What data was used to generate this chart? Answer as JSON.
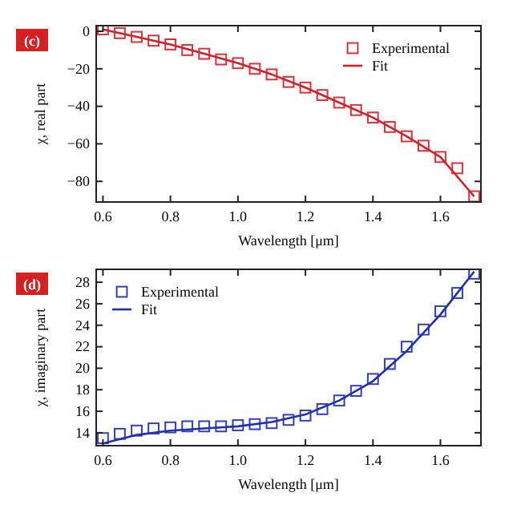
{
  "chart_data": [
    {
      "type": "scatter",
      "xlabel": "Wavelength [μm]",
      "ylabel": "χ, real part",
      "annotations": [
        "(c)"
      ],
      "xlim": [
        0.58,
        1.72
      ],
      "xticks": [
        0.6,
        0.8,
        {
          "value": 1,
          "label": "1.0"
        },
        1.2,
        1.4,
        1.6
      ],
      "ylim": [
        -91,
        3
      ],
      "yticks": [
        0,
        -20,
        -40,
        -60,
        -80
      ],
      "legend": "top right",
      "grid": false,
      "series": [
        {
          "name": "Experimental",
          "marker": "square",
          "color": "#e0303a",
          "x": [
            0.6,
            0.65,
            0.7,
            0.75,
            0.8,
            0.85,
            0.9,
            0.95,
            1.0,
            1.05,
            1.1,
            1.15,
            1.2,
            1.25,
            1.3,
            1.35,
            1.4,
            1.45,
            1.5,
            1.55,
            1.6,
            1.65,
            1.7
          ],
          "values": [
            1,
            -1,
            -3,
            -5,
            -7,
            -10,
            -12,
            -15,
            -17,
            -20,
            -23,
            -27,
            -30,
            -34,
            -38,
            -42,
            -46,
            -51,
            -56,
            -61,
            -67,
            -73,
            -88
          ]
        },
        {
          "name": "Fit",
          "type": "line",
          "color": "#d4202a",
          "x": [
            0.6,
            0.7,
            0.8,
            0.9,
            1.0,
            1.1,
            1.2,
            1.3,
            1.4,
            1.5,
            1.6,
            1.7
          ],
          "values": [
            1,
            -3,
            -7,
            -12,
            -17,
            -23,
            -30,
            -38,
            -46,
            -56,
            -67,
            -88
          ]
        }
      ]
    },
    {
      "type": "scatter",
      "xlabel": "Wavelength [μm]",
      "ylabel": "χ, imaginary part",
      "annotations": [
        "(d)"
      ],
      "xlim": [
        0.58,
        1.72
      ],
      "xticks": [
        0.6,
        0.8,
        {
          "value": 1,
          "label": "1.0"
        },
        1.2,
        1.4,
        1.6
      ],
      "ylim": [
        12.8,
        29.2
      ],
      "yticks": [
        14,
        16,
        18,
        20,
        22,
        24,
        26,
        28
      ],
      "legend": "top left",
      "grid": false,
      "series": [
        {
          "name": "Experimental",
          "marker": "square",
          "color": "#3040c0",
          "x": [
            0.6,
            0.65,
            0.7,
            0.75,
            0.8,
            0.85,
            0.9,
            0.95,
            1.0,
            1.05,
            1.1,
            1.15,
            1.2,
            1.25,
            1.3,
            1.35,
            1.4,
            1.45,
            1.5,
            1.55,
            1.6,
            1.65,
            1.7
          ],
          "values": [
            13.5,
            13.9,
            14.2,
            14.4,
            14.5,
            14.6,
            14.6,
            14.6,
            14.7,
            14.8,
            14.9,
            15.2,
            15.6,
            16.2,
            17.0,
            17.9,
            19.0,
            20.4,
            22.0,
            23.6,
            25.3,
            27.0,
            28.8
          ]
        },
        {
          "name": "Fit",
          "type": "line",
          "color": "#2030b0",
          "x": [
            0.6,
            0.7,
            0.8,
            0.9,
            1.0,
            1.1,
            1.2,
            1.3,
            1.4,
            1.5,
            1.6,
            1.7
          ],
          "values": [
            13.0,
            13.8,
            14.2,
            14.4,
            14.6,
            15.0,
            15.7,
            17.0,
            18.8,
            21.6,
            25.0,
            29.0
          ]
        }
      ]
    }
  ]
}
